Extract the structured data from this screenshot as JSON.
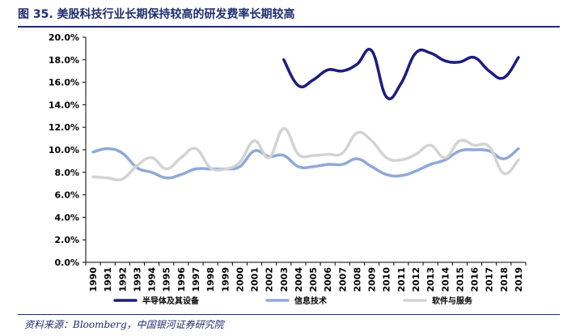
{
  "header": {
    "title": "图 35. 美股科技行业长期保持较高的研发费率长期较高"
  },
  "footer": {
    "source": "资料来源：Bloomberg，中国银河证券研究院"
  },
  "colors": {
    "title": "#1f2d6e",
    "semiconductor": "#1c1c80",
    "it_services": "#8ea9d8",
    "software": "#d3d3d3"
  },
  "chart_data": {
    "type": "line",
    "title": "",
    "xlabel": "",
    "ylabel": "",
    "ylim": [
      0,
      20
    ],
    "y_ticks": [
      "0.0%",
      "2.0%",
      "4.0%",
      "6.0%",
      "8.0%",
      "10.0%",
      "12.0%",
      "14.0%",
      "16.0%",
      "18.0%",
      "20.0%"
    ],
    "grid": false,
    "legend_position": "bottom",
    "categories": [
      "1990",
      "1991",
      "1992",
      "1993",
      "1994",
      "1995",
      "1996",
      "1997",
      "1998",
      "1999",
      "2000",
      "2001",
      "2002",
      "2003",
      "2004",
      "2005",
      "2006",
      "2007",
      "2008",
      "2009",
      "2010",
      "2011",
      "2012",
      "2013",
      "2014",
      "2015",
      "2016",
      "2017",
      "2018",
      "2019"
    ],
    "series": [
      {
        "name": "半导体及其设备",
        "color": "#1c1c80",
        "values": [
          null,
          null,
          null,
          null,
          null,
          null,
          null,
          null,
          null,
          null,
          null,
          null,
          null,
          18.0,
          15.7,
          16.2,
          17.1,
          17.0,
          17.6,
          18.8,
          14.7,
          15.9,
          18.6,
          18.6,
          17.9,
          17.8,
          18.2,
          17.0,
          16.4,
          18.2
        ]
      },
      {
        "name": "信息技术",
        "color": "#8ea9d8",
        "values": [
          9.8,
          10.1,
          9.7,
          8.4,
          8.0,
          7.5,
          7.8,
          8.3,
          8.3,
          8.3,
          8.5,
          9.9,
          9.4,
          9.5,
          8.5,
          8.5,
          8.7,
          8.7,
          9.2,
          8.5,
          7.8,
          7.7,
          8.1,
          8.7,
          9.1,
          9.9,
          10.0,
          9.9,
          9.2,
          10.1
        ]
      },
      {
        "name": "软件与服务",
        "color": "#d3d3d3",
        "values": [
          7.6,
          7.5,
          7.4,
          8.6,
          9.3,
          8.3,
          9.3,
          10.1,
          8.4,
          8.3,
          8.9,
          10.8,
          9.3,
          11.9,
          9.6,
          9.5,
          9.6,
          9.7,
          11.5,
          10.8,
          9.3,
          9.1,
          9.6,
          10.4,
          9.3,
          10.8,
          10.4,
          10.3,
          7.9,
          9.1
        ]
      }
    ]
  }
}
